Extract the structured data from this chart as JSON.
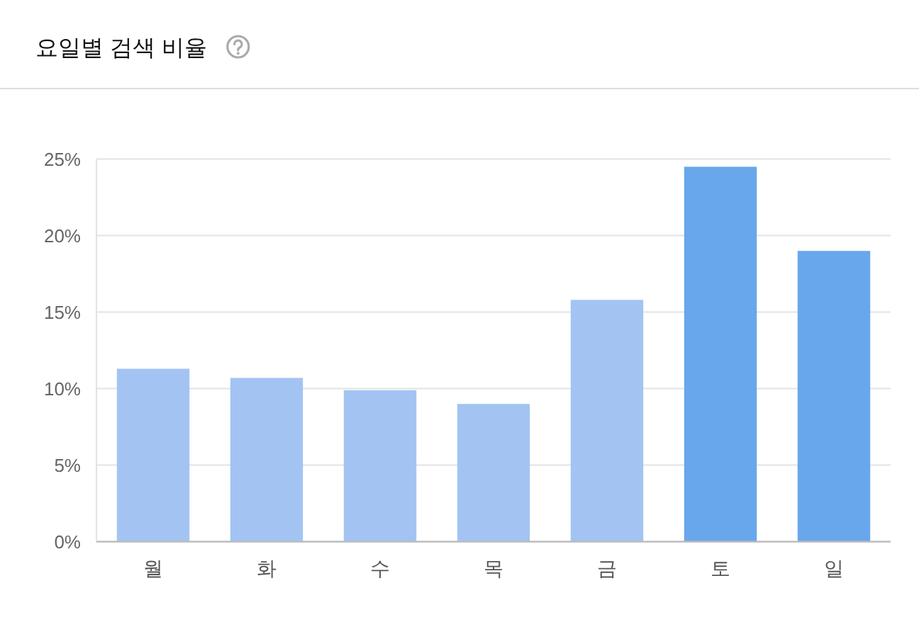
{
  "chart_data": {
    "type": "bar",
    "title": "요일별 검색 비율",
    "categories": [
      "월",
      "화",
      "수",
      "목",
      "금",
      "토",
      "일"
    ],
    "values": [
      11.3,
      10.7,
      9.9,
      9.0,
      15.8,
      24.5,
      19.0
    ],
    "colors": [
      "#a3c4f3",
      "#a3c4f3",
      "#a3c4f3",
      "#a3c4f3",
      "#a3c4f3",
      "#68a7ec",
      "#68a7ec"
    ],
    "ylim": [
      0,
      25
    ],
    "yticks": [
      {
        "value": 0,
        "label": "0%"
      },
      {
        "value": 5,
        "label": "5%"
      },
      {
        "value": 10,
        "label": "10%"
      },
      {
        "value": 15,
        "label": "15%"
      },
      {
        "value": 20,
        "label": "20%"
      },
      {
        "value": 25,
        "label": "25%"
      }
    ],
    "grid": "y"
  }
}
